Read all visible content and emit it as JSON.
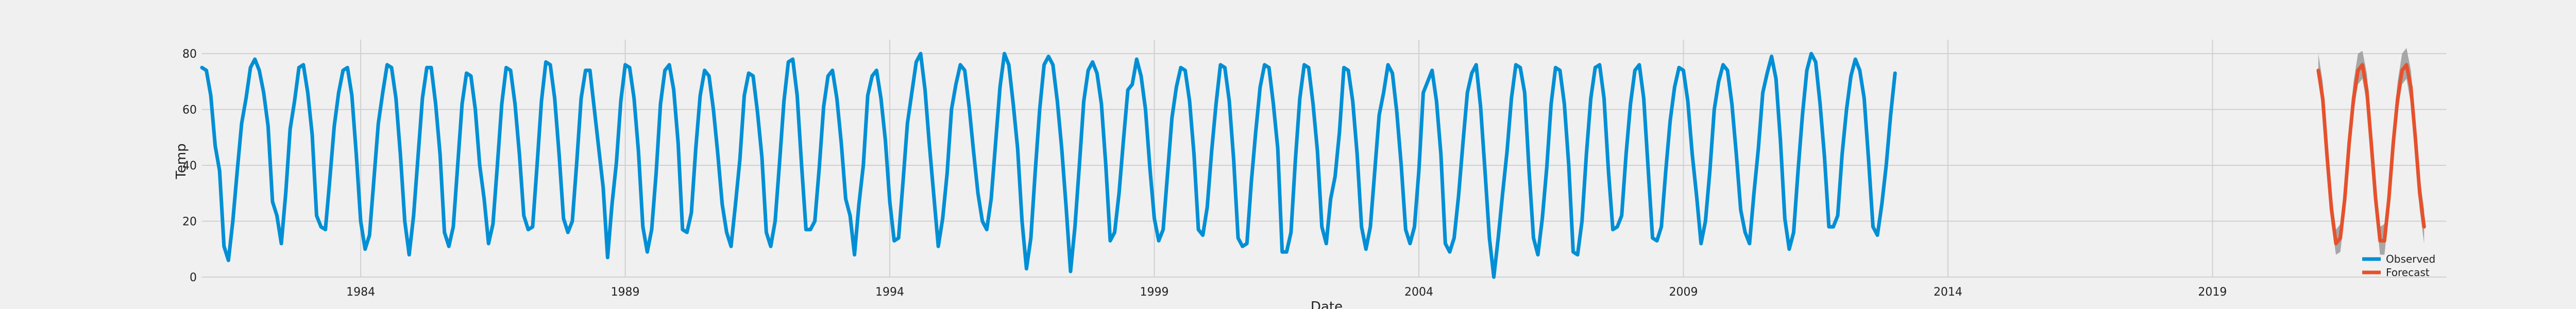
{
  "chart_data": {
    "type": "line",
    "xlabel": "Date",
    "ylabel": "Temp",
    "ylim": [
      0,
      85
    ],
    "xlim": [
      "1981-01",
      "2023-06"
    ],
    "grid": true,
    "legend_position": "bottom-right",
    "yticks": [
      0,
      20,
      40,
      60,
      80
    ],
    "xticks": [
      {
        "date": "1984-01",
        "label": "1984"
      },
      {
        "date": "1989-01",
        "label": "1989"
      },
      {
        "date": "1994-01",
        "label": "1994"
      },
      {
        "date": "1999-01",
        "label": "1999"
      },
      {
        "date": "2004-01",
        "label": "2004"
      },
      {
        "date": "2009-01",
        "label": "2009"
      },
      {
        "date": "2014-01",
        "label": "2014"
      },
      {
        "date": "2019-01",
        "label": "2019"
      }
    ],
    "colors": {
      "observed": "#008fd5",
      "forecast": "#e5512c",
      "band": "#9a9a9a",
      "grid": "#d0d0d0",
      "background": "#f0f0f0"
    },
    "series": [
      {
        "name": "Observed",
        "start": "1981-01",
        "frequency": "monthly",
        "values": [
          75,
          74,
          65,
          47,
          38,
          11,
          6,
          20,
          38,
          55,
          64,
          75,
          78,
          74,
          66,
          54,
          27,
          22,
          12,
          30,
          53,
          63,
          75,
          76,
          66,
          51,
          22,
          18,
          17,
          35,
          54,
          66,
          74,
          75,
          65,
          44,
          20,
          10,
          15,
          35,
          55,
          66,
          76,
          75,
          64,
          44,
          20,
          8,
          22,
          43,
          64,
          75,
          75,
          62,
          44,
          16,
          11,
          18,
          40,
          62,
          73,
          72,
          60,
          40,
          28,
          12,
          19,
          40,
          62,
          75,
          74,
          62,
          44,
          22,
          17,
          18,
          40,
          63,
          77,
          76,
          64,
          44,
          21,
          16,
          20,
          41,
          64,
          74,
          74,
          60,
          46,
          32,
          7,
          26,
          41,
          63,
          76,
          75,
          64,
          45,
          18,
          9,
          17,
          37,
          62,
          74,
          76,
          67,
          48,
          17,
          16,
          23,
          46,
          65,
          74,
          72,
          60,
          44,
          26,
          16,
          11,
          26,
          42,
          65,
          73,
          72,
          59,
          43,
          16,
          11,
          20,
          41,
          63,
          77,
          78,
          65,
          40,
          17,
          17,
          20,
          39,
          61,
          72,
          74,
          64,
          48,
          28,
          22,
          8,
          26,
          40,
          65,
          72,
          74,
          64,
          49,
          27,
          13,
          14,
          34,
          55,
          66,
          77,
          80,
          67,
          47,
          29,
          11,
          21,
          37,
          60,
          69,
          76,
          74,
          61,
          45,
          30,
          20,
          17,
          28,
          48,
          68,
          80,
          76,
          62,
          46,
          20,
          3,
          14,
          38,
          60,
          76,
          79,
          76,
          63,
          46,
          25,
          2,
          18,
          40,
          63,
          74,
          77,
          73,
          62,
          40,
          13,
          16,
          30,
          49,
          67,
          69,
          78,
          72,
          60,
          39,
          21,
          13,
          17,
          37,
          57,
          68,
          75,
          74,
          63,
          44,
          17,
          15,
          25,
          45,
          62,
          76,
          75,
          63,
          42,
          14,
          11,
          12,
          34,
          52,
          68,
          76,
          75,
          62,
          46,
          9,
          9,
          16,
          42,
          64,
          76,
          75,
          62,
          45,
          18,
          12,
          28,
          36,
          52,
          75,
          74,
          63,
          44,
          18,
          10,
          18,
          38,
          58,
          66,
          76,
          73,
          59,
          40,
          17,
          12,
          18,
          38,
          66,
          70,
          74,
          63,
          44,
          12,
          9,
          14,
          29,
          48,
          66,
          73,
          76,
          61,
          38,
          14,
          0,
          14,
          30,
          45,
          64,
          76,
          75,
          66,
          38,
          14,
          8,
          21,
          39,
          62,
          75,
          74,
          62,
          40,
          9,
          8,
          20,
          44,
          64,
          75,
          76,
          64,
          38,
          17,
          18,
          22,
          44,
          62,
          74,
          76,
          64,
          39,
          14,
          13,
          18,
          38,
          56,
          68,
          75,
          74,
          63,
          44,
          29,
          12,
          20,
          38,
          60,
          70,
          76,
          74,
          62,
          44,
          24,
          16,
          12,
          30,
          46,
          66,
          73,
          79,
          71,
          49,
          21,
          10,
          16,
          38,
          58,
          74,
          80,
          77,
          62,
          43,
          18,
          18,
          22,
          44,
          60,
          72,
          78,
          74,
          64,
          42,
          18,
          15,
          26,
          40,
          58,
          73
        ]
      },
      {
        "name": "Forecast",
        "start": "2021-01",
        "frequency": "monthly",
        "values": [
          74,
          64,
          43,
          24,
          12,
          14,
          28,
          48,
          64,
          74,
          76,
          67,
          48,
          28,
          13,
          13,
          28,
          48,
          64,
          74,
          76,
          68,
          50,
          30,
          18
        ],
        "lower": [
          70,
          59,
          38,
          19,
          8,
          9,
          23,
          43,
          59,
          69,
          71,
          62,
          43,
          23,
          8,
          8,
          23,
          43,
          59,
          69,
          71,
          62,
          44,
          24,
          12
        ],
        "upper": [
          80,
          70,
          49,
          30,
          17,
          19,
          33,
          53,
          70,
          80,
          81,
          73,
          54,
          34,
          18,
          19,
          34,
          54,
          70,
          80,
          82,
          74,
          56,
          36,
          24
        ]
      }
    ]
  }
}
